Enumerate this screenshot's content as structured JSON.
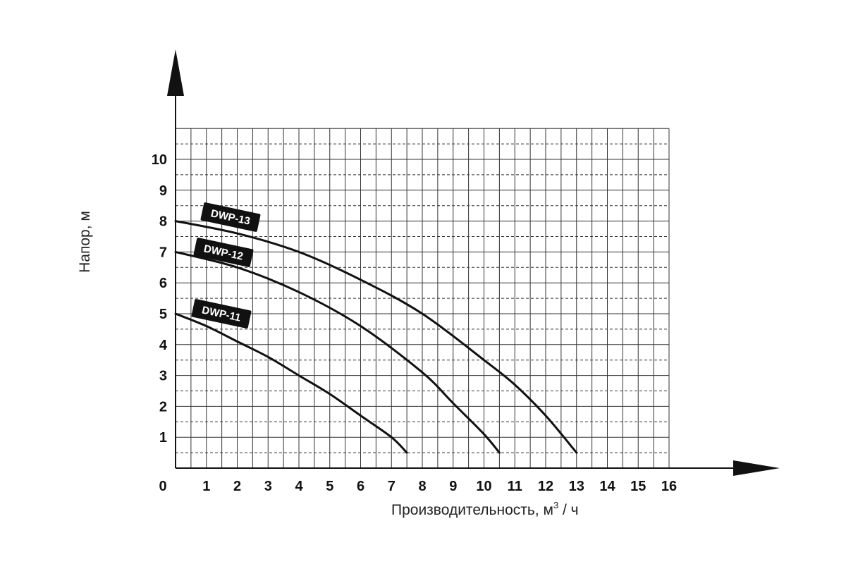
{
  "chart_data": {
    "type": "line",
    "xlabel": "Производительность, м",
    "xlabel_sup": "3",
    "xlabel_suffix": " / ч",
    "ylabel": "Напор, м",
    "xlim": [
      0,
      16
    ],
    "ylim": [
      0,
      11
    ],
    "x_ticks": [
      "0",
      "1",
      "2",
      "3",
      "4",
      "5",
      "6",
      "7",
      "8",
      "9",
      "10",
      "11",
      "12",
      "13",
      "14",
      "15",
      "16"
    ],
    "y_ticks": [
      "1",
      "2",
      "3",
      "4",
      "5",
      "6",
      "7",
      "8",
      "9",
      "10"
    ],
    "grid": true,
    "series": [
      {
        "name": "DWP-13",
        "x": [
          0,
          2,
          4,
          6,
          8,
          10,
          11,
          12,
          13
        ],
        "y": [
          8,
          7.6,
          7,
          6.1,
          5,
          3.5,
          2.7,
          1.7,
          0.5
        ]
      },
      {
        "name": "DWP-12",
        "x": [
          0,
          2,
          4,
          6,
          8,
          9,
          10,
          10.5
        ],
        "y": [
          7,
          6.5,
          5.7,
          4.6,
          3.1,
          2.1,
          1.1,
          0.5
        ]
      },
      {
        "name": "DWP-11",
        "x": [
          0,
          1,
          2,
          3,
          4,
          5,
          6,
          7,
          7.5
        ],
        "y": [
          5,
          4.6,
          4.1,
          3.6,
          3,
          2.4,
          1.7,
          1,
          0.5
        ]
      }
    ]
  }
}
